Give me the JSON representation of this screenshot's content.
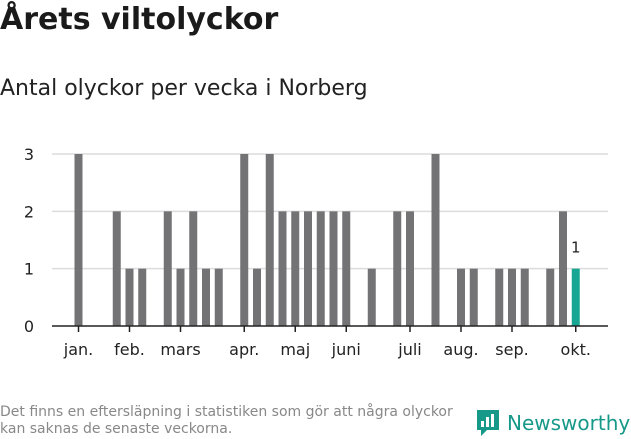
{
  "header": {
    "title": "Årets viltolyckor",
    "subtitle": "Antal olyckor per vecka i Norberg"
  },
  "footnote": "Det finns en eftersläpning i statistiken som gör att några olyckor kan saknas de senaste veckorna.",
  "brand": {
    "name": "Newsworthy",
    "icon": "newsworthy-logo-icon",
    "color": "#17998a"
  },
  "colors": {
    "bar": "#737275",
    "highlight": "#17a594",
    "grid": "#dcdcdc",
    "axis": "#222222"
  },
  "chart_data": {
    "type": "bar",
    "title": "Antal olyckor per vecka i Norberg",
    "xlabel": "",
    "ylabel": "",
    "ylim": [
      0,
      3
    ],
    "yticks": [
      0,
      1,
      2,
      3
    ],
    "grid": true,
    "categories": [
      1,
      2,
      3,
      4,
      5,
      6,
      7,
      8,
      9,
      10,
      11,
      12,
      13,
      14,
      15,
      16,
      17,
      18,
      19,
      20,
      21,
      22,
      23,
      24,
      25,
      26,
      27,
      28,
      29,
      30,
      31,
      32,
      33,
      34,
      35,
      36,
      37,
      38,
      39,
      40,
      41
    ],
    "values": [
      3,
      0,
      0,
      2,
      1,
      1,
      0,
      2,
      1,
      2,
      1,
      1,
      0,
      3,
      1,
      3,
      2,
      2,
      2,
      2,
      2,
      2,
      0,
      1,
      0,
      2,
      2,
      0,
      3,
      0,
      1,
      1,
      0,
      1,
      1,
      1,
      0,
      1,
      2,
      1,
      0
    ],
    "month_labels": [
      {
        "label": "jan.",
        "week": 1
      },
      {
        "label": "feb.",
        "week": 5
      },
      {
        "label": "mars",
        "week": 9
      },
      {
        "label": "apr.",
        "week": 14
      },
      {
        "label": "maj",
        "week": 18
      },
      {
        "label": "juni",
        "week": 22
      },
      {
        "label": "juli",
        "week": 27
      },
      {
        "label": "aug.",
        "week": 31
      },
      {
        "label": "sep.",
        "week": 35
      },
      {
        "label": "okt.",
        "week": 40
      }
    ],
    "highlight": {
      "week": 40,
      "label": "1"
    }
  }
}
